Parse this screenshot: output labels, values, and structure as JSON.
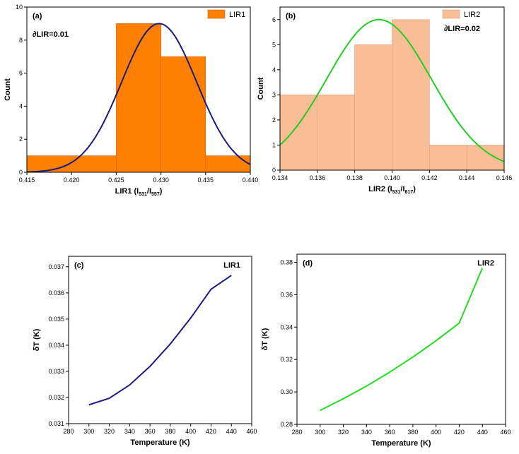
{
  "chart_data": [
    {
      "panel_label": "(a)",
      "type": "bar",
      "xlabel": "LIR1 (I",
      "xlabel_sub1": "531",
      "xlabel_mid": "/I",
      "xlabel_sub2": "557",
      "xlabel_end": ")",
      "ylabel": "Count",
      "annotation": "∂LIR=0.01",
      "legend": "LIR1",
      "xlim": [
        0.415,
        0.44
      ],
      "ylim": [
        0,
        10
      ],
      "xticks": [
        "0.415",
        "0.420",
        "0.425",
        "0.430",
        "0.435",
        "0.440"
      ],
      "yticks": [
        "0",
        "2",
        "4",
        "6",
        "8",
        "10"
      ],
      "bins": [
        {
          "x0": 0.415,
          "x1": 0.425,
          "count": 1
        },
        {
          "x0": 0.425,
          "x1": 0.43,
          "count": 9
        },
        {
          "x0": 0.43,
          "x1": 0.435,
          "count": 7
        },
        {
          "x0": 0.435,
          "x1": 0.44,
          "count": 1
        }
      ],
      "fit": {
        "mean": 0.4298,
        "sigma": 0.0042,
        "peak": 9.0
      },
      "bar_color": "#ff8000",
      "curve_color": "#1a1a80"
    },
    {
      "panel_label": "(b)",
      "type": "bar",
      "xlabel": "LIR2 (I",
      "xlabel_sub1": "531",
      "xlabel_mid": "/I",
      "xlabel_sub2": "617",
      "xlabel_end": ")",
      "ylabel": "Count",
      "annotation": "∂LIR=0.02",
      "legend": "LIR2",
      "xlim": [
        0.134,
        0.146
      ],
      "ylim": [
        0,
        6.5
      ],
      "xticks": [
        "0.134",
        "0.136",
        "0.138",
        "0.140",
        "0.142",
        "0.144",
        "0.146"
      ],
      "yticks": [
        "0",
        "1",
        "2",
        "3",
        "4",
        "5",
        "6"
      ],
      "bins": [
        {
          "x0": 0.134,
          "x1": 0.136,
          "count": 3
        },
        {
          "x0": 0.136,
          "x1": 0.138,
          "count": 3
        },
        {
          "x0": 0.138,
          "x1": 0.14,
          "count": 5
        },
        {
          "x0": 0.14,
          "x1": 0.142,
          "count": 6
        },
        {
          "x0": 0.142,
          "x1": 0.144,
          "count": 1
        },
        {
          "x0": 0.144,
          "x1": 0.146,
          "count": 1
        }
      ],
      "fit": {
        "mean": 0.1393,
        "sigma": 0.0028,
        "peak": 6.0
      },
      "bar_color": "#f9be96",
      "curve_color": "#22cc22"
    },
    {
      "panel_label": "(c)",
      "type": "line",
      "xlabel": "Temperature (K)",
      "ylabel": "δT (K)",
      "legend_text": "LIR1",
      "xlim": [
        280,
        460
      ],
      "ylim": [
        0.031,
        0.0374
      ],
      "xticks": [
        "280",
        "300",
        "320",
        "340",
        "360",
        "380",
        "400",
        "420",
        "440",
        "460"
      ],
      "yticks": [
        "0.031",
        "0.032",
        "0.033",
        "0.034",
        "0.035",
        "0.036",
        "0.037"
      ],
      "x": [
        300,
        320,
        340,
        360,
        380,
        400,
        420,
        440
      ],
      "y": [
        0.03172,
        0.03197,
        0.03248,
        0.03319,
        0.03405,
        0.03504,
        0.03614,
        0.03667
      ],
      "line_color": "#1a1a80"
    },
    {
      "panel_label": "(d)",
      "type": "line",
      "xlabel": "Temperature (K)",
      "ylabel": "δT (K)",
      "legend_text": "LIR2",
      "xlim": [
        280,
        460
      ],
      "ylim": [
        0.28,
        0.385
      ],
      "xticks": [
        "280",
        "300",
        "320",
        "340",
        "360",
        "380",
        "400",
        "420",
        "440",
        "460"
      ],
      "yticks": [
        "0.28",
        "0.30",
        "0.32",
        "0.34",
        "0.36",
        "0.38"
      ],
      "x": [
        300,
        320,
        340,
        360,
        380,
        400,
        420,
        440
      ],
      "y": [
        0.2886,
        0.2958,
        0.3036,
        0.3122,
        0.3215,
        0.3316,
        0.3425,
        0.3765
      ],
      "line_color": "#22dd22"
    }
  ]
}
